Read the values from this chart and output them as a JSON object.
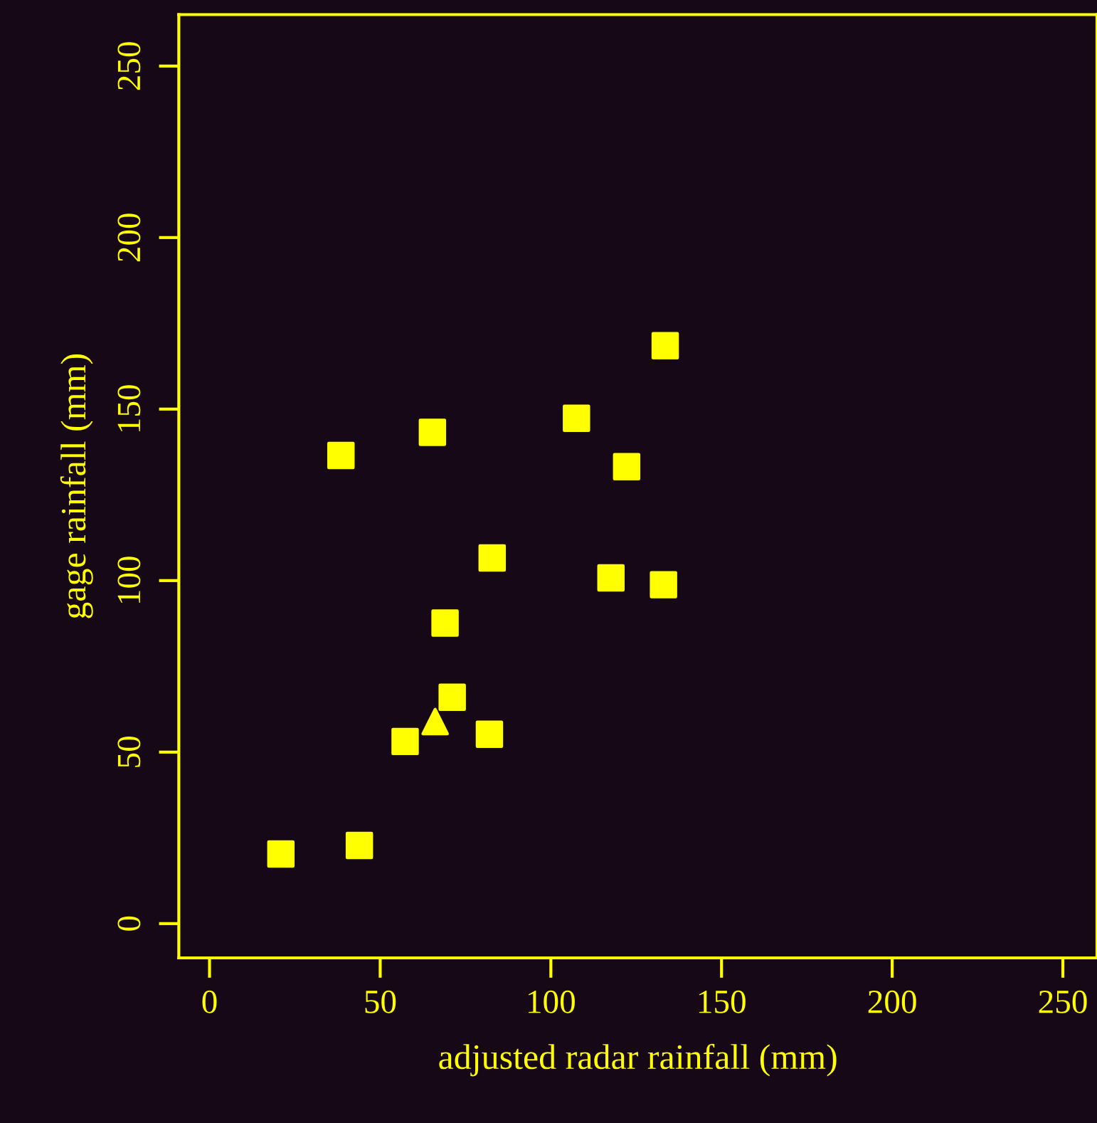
{
  "chart_data": {
    "type": "scatter",
    "xlabel": "adjusted radar rainfall (mm)",
    "ylabel": "gage rainfall (mm)",
    "xlim": [
      -9,
      260
    ],
    "ylim": [
      -10,
      265
    ],
    "xticks": [
      0,
      50,
      100,
      150,
      200,
      250
    ],
    "yticks": [
      0,
      50,
      100,
      150,
      200,
      250
    ],
    "grid": false,
    "legend": false,
    "series": [
      {
        "color": "#ffff00",
        "marker": "square",
        "x": [
          20.9,
          43.9,
          57.3,
          71.1,
          82,
          69,
          82.8,
          65.3,
          107.5,
          117.6,
          133,
          133.5
        ],
        "values": [
          20.3,
          22.8,
          53.1,
          66,
          55.2,
          87.6,
          106.6,
          143.2,
          147.3,
          100.8,
          98.8,
          168.5
        ]
      },
      {
        "color": "#ffff00",
        "marker": "square",
        "x": [
          38.5,
          122.2
        ],
        "values": [
          136.5,
          133.2
        ]
      },
      {
        "color": "#ffff00",
        "marker": "triangle",
        "x": [
          66.1
        ],
        "values": [
          58.9
        ]
      }
    ]
  }
}
